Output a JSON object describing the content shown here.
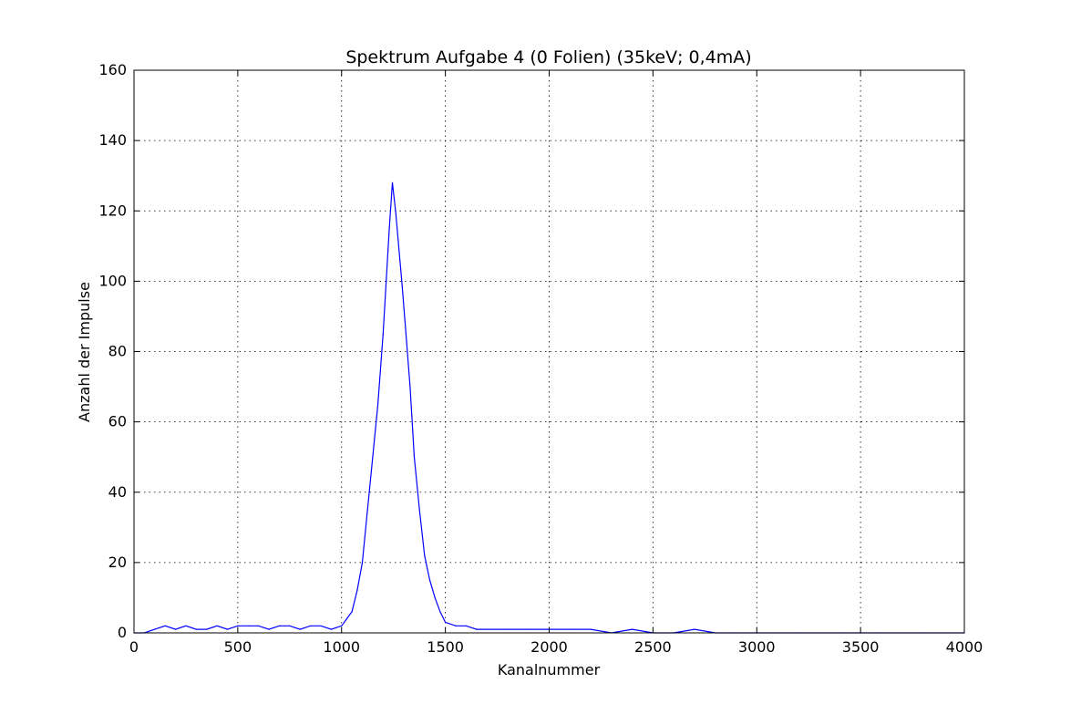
{
  "chart_data": {
    "type": "line",
    "title": "Spektrum Aufgabe 4 (0 Folien) (35keV; 0,4mA)",
    "xlabel": "Kanalnummer",
    "ylabel": "Anzahl der Impulse",
    "xlim": [
      0,
      4000
    ],
    "ylim": [
      0,
      160
    ],
    "xticks": [
      0,
      500,
      1000,
      1500,
      2000,
      2500,
      3000,
      3500,
      4000
    ],
    "yticks": [
      0,
      20,
      40,
      60,
      80,
      100,
      120,
      140,
      160
    ],
    "grid": true,
    "series": [
      {
        "color": "#0000ff",
        "x": [
          0,
          50,
          100,
          150,
          200,
          250,
          300,
          350,
          400,
          450,
          500,
          550,
          600,
          650,
          700,
          750,
          800,
          850,
          900,
          950,
          1000,
          1025,
          1050,
          1075,
          1100,
          1125,
          1150,
          1175,
          1200,
          1215,
          1230,
          1245,
          1260,
          1275,
          1290,
          1310,
          1330,
          1350,
          1375,
          1400,
          1425,
          1450,
          1475,
          1500,
          1550,
          1600,
          1650,
          1700,
          1800,
          1900,
          2000,
          2100,
          2200,
          2300,
          2400,
          2500,
          2600,
          2700,
          2800,
          2900,
          3000,
          3200,
          3400,
          3600,
          3800,
          4000
        ],
        "y": [
          0,
          0,
          1,
          2,
          1,
          2,
          1,
          1,
          2,
          1,
          2,
          2,
          2,
          1,
          2,
          2,
          1,
          2,
          2,
          1,
          2,
          4,
          6,
          12,
          20,
          35,
          50,
          65,
          85,
          100,
          115,
          128,
          120,
          110,
          100,
          85,
          70,
          50,
          35,
          22,
          15,
          10,
          6,
          3,
          2,
          2,
          1,
          1,
          1,
          1,
          1,
          1,
          1,
          0,
          1,
          0,
          0,
          1,
          0,
          0,
          0,
          0,
          0,
          0,
          0,
          0
        ]
      }
    ]
  }
}
